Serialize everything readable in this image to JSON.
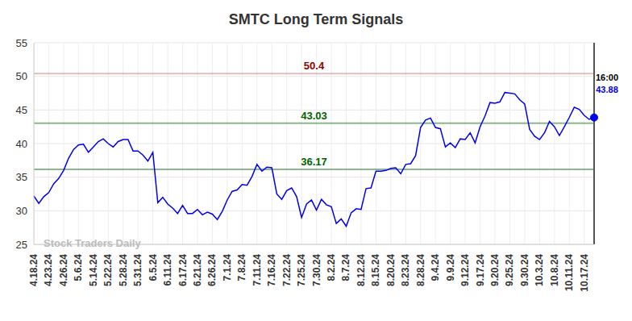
{
  "chart_data": {
    "type": "line",
    "title": "SMTC Long Term Signals",
    "watermark": "Stock Traders Daily",
    "categories": [
      "4.18.24",
      null,
      null,
      "4.23.24",
      null,
      null,
      "4.26.24",
      null,
      null,
      "5.6.24",
      null,
      null,
      "5.14.24",
      null,
      null,
      "5.22.24",
      null,
      null,
      "5.28.24",
      null,
      null,
      "5.31.24",
      null,
      null,
      "6.5.24",
      null,
      null,
      "6.11.24",
      null,
      null,
      "6.17.24",
      null,
      null,
      "6.21.24",
      null,
      null,
      "6.26.24",
      null,
      null,
      "7.1.24",
      null,
      null,
      "7.8.24",
      null,
      null,
      "7.11.24",
      null,
      null,
      "7.16.24",
      null,
      null,
      "7.22.24",
      null,
      null,
      "7.25.24",
      null,
      null,
      "7.30.24",
      null,
      null,
      "8.2.24",
      null,
      null,
      "8.7.24",
      null,
      null,
      "8.12.24",
      null,
      null,
      "8.15.24",
      null,
      null,
      "8.20.24",
      null,
      null,
      "8.23.24",
      null,
      null,
      "8.28.24",
      null,
      null,
      "9.4.24",
      null,
      null,
      "9.9.24",
      null,
      null,
      "9.12.24",
      null,
      null,
      "9.17.24",
      null,
      null,
      "9.20.24",
      null,
      null,
      "9.25.24",
      null,
      null,
      "9.30.24",
      null,
      null,
      "10.3.24",
      null,
      null,
      "10.8.24",
      null,
      null,
      "10.11.24",
      null,
      null,
      "10.17.24",
      null,
      null
    ],
    "values": [
      32.2,
      31.1,
      32.1,
      32.7,
      34.0,
      34.8,
      36.0,
      37.8,
      39.1,
      39.8,
      39.9,
      38.7,
      39.5,
      40.3,
      40.7,
      40.0,
      39.5,
      40.3,
      40.6,
      40.6,
      38.9,
      38.9,
      38.3,
      37.4,
      38.7,
      31.2,
      32.0,
      31.0,
      30.4,
      29.6,
      30.8,
      29.6,
      29.6,
      30.2,
      29.4,
      29.8,
      29.5,
      28.7,
      29.9,
      31.6,
      32.9,
      33.1,
      33.9,
      33.8,
      35.1,
      36.9,
      35.9,
      36.5,
      36.4,
      32.5,
      31.7,
      33.0,
      33.4,
      32.1,
      29.0,
      31.0,
      31.6,
      30.1,
      31.7,
      30.9,
      30.6,
      28.1,
      28.8,
      27.7,
      29.7,
      30.3,
      30.2,
      33.3,
      33.4,
      35.9,
      35.9,
      36.0,
      36.3,
      36.4,
      35.5,
      36.9,
      37.0,
      38.2,
      42.4,
      43.5,
      43.8,
      42.4,
      42.2,
      39.5,
      40.1,
      39.4,
      40.7,
      40.6,
      41.6,
      40.1,
      42.5,
      44.1,
      46.1,
      46.0,
      46.2,
      47.6,
      47.5,
      47.4,
      46.5,
      45.9,
      42.1,
      41.1,
      40.6,
      41.6,
      43.3,
      42.5,
      41.2,
      42.5,
      43.9,
      45.4,
      45.1,
      44.2,
      43.6,
      43.88
    ],
    "color": "#0000ee",
    "ylim": [
      25,
      55
    ],
    "yticks": [
      25,
      30,
      35,
      40,
      45,
      50,
      55
    ],
    "grid": true,
    "reference_lines": [
      {
        "value": 50.4,
        "color": "#8b0000"
      },
      {
        "value": 43.03,
        "color": "#006400"
      },
      {
        "value": 36.17,
        "color": "#006400"
      }
    ],
    "last_point": {
      "label": "16:00",
      "value": 43.88
    }
  }
}
